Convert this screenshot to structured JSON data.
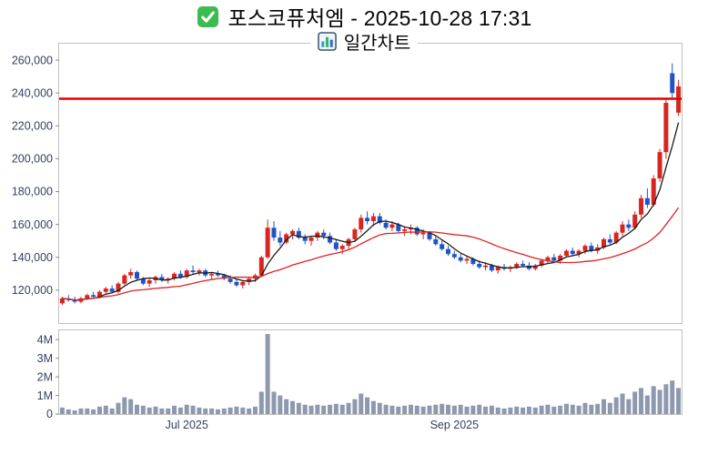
{
  "header": {
    "title": "포스코퓨처엠 - 2025-10-28 17:31",
    "subtitle": "일간차트",
    "check_icon": "green-checkbox-icon",
    "chart_icon": "bar-chart-icon"
  },
  "chart_data": {
    "type": "candlestick+volume",
    "title": "포스코퓨처엠 - 2025-10-28 17:31",
    "subtitle": "일간차트",
    "grid": false,
    "legend": "none",
    "price_axis": {
      "min": 100000,
      "max": 270000,
      "ticks": [
        120000,
        140000,
        160000,
        180000,
        200000,
        220000,
        240000,
        260000
      ]
    },
    "volume_axis": {
      "max": 4500000,
      "ticks": [
        0,
        1000000,
        2000000,
        3000000,
        4000000
      ],
      "tick_labels": [
        "0",
        "1M",
        "2M",
        "3M",
        "4M"
      ]
    },
    "x_labels": [
      {
        "label": "Jul 2025",
        "index": 20
      },
      {
        "label": "Sep 2025",
        "index": 63
      }
    ],
    "reference_line": {
      "value": 236500,
      "color": "#e60000"
    },
    "moving_averages": [
      {
        "name": "MA5",
        "window": 5,
        "color": "#1a1a1a"
      },
      {
        "name": "MA20",
        "window": 20,
        "color": "#dd2222"
      }
    ],
    "colors": {
      "up": "#d7261f",
      "down": "#2053c6",
      "volume": "#8e99ae",
      "border": "#c0c0c0"
    },
    "columns": [
      "date",
      "open",
      "high",
      "low",
      "close",
      "volume"
    ],
    "candles": [
      [
        "2025-06-02",
        112000,
        116000,
        111000,
        115000,
        350000
      ],
      [
        "2025-06-03",
        115000,
        117000,
        113000,
        114000,
        250000
      ],
      [
        "2025-06-04",
        114000,
        116000,
        112000,
        113000,
        200000
      ],
      [
        "2025-06-05",
        113000,
        116000,
        112000,
        115000,
        300000
      ],
      [
        "2025-06-09",
        115000,
        118000,
        114000,
        117000,
        300000
      ],
      [
        "2025-06-10",
        117000,
        119000,
        115000,
        116000,
        250000
      ],
      [
        "2025-06-11",
        116000,
        120000,
        115000,
        119000,
        400000
      ],
      [
        "2025-06-12",
        119000,
        122000,
        118000,
        121000,
        450000
      ],
      [
        "2025-06-13",
        121000,
        123000,
        118000,
        119000,
        300000
      ],
      [
        "2025-06-16",
        119000,
        125000,
        118000,
        124000,
        600000
      ],
      [
        "2025-06-17",
        124000,
        130000,
        123000,
        129000,
        900000
      ],
      [
        "2025-06-18",
        129000,
        133000,
        127000,
        131000,
        800000
      ],
      [
        "2025-06-19",
        131000,
        132000,
        126000,
        127000,
        500000
      ],
      [
        "2025-06-20",
        127000,
        128000,
        123000,
        124000,
        450000
      ],
      [
        "2025-06-23",
        124000,
        127000,
        122000,
        126000,
        350000
      ],
      [
        "2025-06-24",
        126000,
        129000,
        124000,
        128000,
        400000
      ],
      [
        "2025-06-25",
        128000,
        130000,
        125000,
        126000,
        300000
      ],
      [
        "2025-06-26",
        126000,
        128000,
        124000,
        127000,
        300000
      ],
      [
        "2025-06-27",
        127000,
        131000,
        126000,
        130000,
        450000
      ],
      [
        "2025-06-30",
        130000,
        132000,
        127000,
        128000,
        350000
      ],
      [
        "2025-07-01",
        128000,
        133000,
        127000,
        132000,
        500000
      ],
      [
        "2025-07-02",
        132000,
        135000,
        130000,
        131000,
        450000
      ],
      [
        "2025-07-03",
        131000,
        133000,
        129000,
        132000,
        350000
      ],
      [
        "2025-07-04",
        132000,
        133000,
        128000,
        129000,
        300000
      ],
      [
        "2025-07-07",
        129000,
        131000,
        127000,
        130000,
        300000
      ],
      [
        "2025-07-08",
        130000,
        132000,
        128000,
        129000,
        250000
      ],
      [
        "2025-07-09",
        129000,
        130000,
        126000,
        127000,
        300000
      ],
      [
        "2025-07-10",
        127000,
        129000,
        124000,
        125000,
        350000
      ],
      [
        "2025-07-11",
        125000,
        127000,
        122000,
        123000,
        400000
      ],
      [
        "2025-07-14",
        123000,
        126000,
        121000,
        125000,
        350000
      ],
      [
        "2025-07-15",
        125000,
        128000,
        123000,
        127000,
        300000
      ],
      [
        "2025-07-16",
        127000,
        130000,
        125000,
        129000,
        400000
      ],
      [
        "2025-07-17",
        129000,
        141000,
        128000,
        140000,
        1200000
      ],
      [
        "2025-07-18",
        140000,
        163000,
        139000,
        158000,
        4300000
      ],
      [
        "2025-07-21",
        158000,
        162000,
        150000,
        152000,
        1200000
      ],
      [
        "2025-07-22",
        152000,
        156000,
        147000,
        149000,
        1000000
      ],
      [
        "2025-07-23",
        149000,
        155000,
        148000,
        154000,
        800000
      ],
      [
        "2025-07-24",
        154000,
        157000,
        151000,
        156000,
        700000
      ],
      [
        "2025-07-25",
        156000,
        158000,
        151000,
        152000,
        600000
      ],
      [
        "2025-07-28",
        152000,
        154000,
        148000,
        150000,
        500000
      ],
      [
        "2025-07-29",
        150000,
        153000,
        147000,
        152000,
        450000
      ],
      [
        "2025-07-30",
        152000,
        156000,
        150000,
        155000,
        500000
      ],
      [
        "2025-07-31",
        155000,
        157000,
        151000,
        153000,
        450000
      ],
      [
        "2025-08-01",
        153000,
        155000,
        148000,
        149000,
        500000
      ],
      [
        "2025-08-04",
        149000,
        151000,
        144000,
        145000,
        550000
      ],
      [
        "2025-08-05",
        145000,
        148000,
        142000,
        147000,
        500000
      ],
      [
        "2025-08-06",
        147000,
        152000,
        145000,
        151000,
        600000
      ],
      [
        "2025-08-07",
        151000,
        158000,
        150000,
        157000,
        800000
      ],
      [
        "2025-08-08",
        157000,
        166000,
        155000,
        164000,
        1100000
      ],
      [
        "2025-08-11",
        164000,
        168000,
        160000,
        162000,
        900000
      ],
      [
        "2025-08-12",
        162000,
        167000,
        159000,
        165000,
        700000
      ],
      [
        "2025-08-13",
        165000,
        167000,
        160000,
        161000,
        600000
      ],
      [
        "2025-08-14",
        161000,
        163000,
        157000,
        158000,
        500000
      ],
      [
        "2025-08-18",
        158000,
        162000,
        156000,
        160000,
        450000
      ],
      [
        "2025-08-19",
        160000,
        161000,
        155000,
        156000,
        400000
      ],
      [
        "2025-08-20",
        156000,
        159000,
        153000,
        157000,
        450000
      ],
      [
        "2025-08-21",
        157000,
        160000,
        154000,
        158000,
        500000
      ],
      [
        "2025-08-22",
        158000,
        159000,
        153000,
        154000,
        450000
      ],
      [
        "2025-08-25",
        154000,
        157000,
        151000,
        155000,
        400000
      ],
      [
        "2025-08-26",
        155000,
        156000,
        150000,
        151000,
        450000
      ],
      [
        "2025-08-27",
        151000,
        153000,
        147000,
        148000,
        500000
      ],
      [
        "2025-08-28",
        148000,
        150000,
        144000,
        145000,
        550000
      ],
      [
        "2025-08-29",
        145000,
        147000,
        141000,
        142000,
        500000
      ],
      [
        "2025-09-01",
        142000,
        144000,
        139000,
        140000,
        450000
      ],
      [
        "2025-09-02",
        140000,
        142000,
        137000,
        138000,
        500000
      ],
      [
        "2025-09-03",
        138000,
        141000,
        136000,
        139000,
        400000
      ],
      [
        "2025-09-04",
        139000,
        140000,
        135000,
        136000,
        450000
      ],
      [
        "2025-09-05",
        136000,
        138000,
        133000,
        134000,
        500000
      ],
      [
        "2025-09-08",
        134000,
        137000,
        132000,
        135000,
        400000
      ],
      [
        "2025-09-09",
        135000,
        136000,
        131000,
        132000,
        450000
      ],
      [
        "2025-09-10",
        132000,
        135000,
        130000,
        134000,
        350000
      ],
      [
        "2025-09-11",
        134000,
        136000,
        132000,
        133000,
        300000
      ],
      [
        "2025-09-12",
        133000,
        135000,
        131000,
        134000,
        350000
      ],
      [
        "2025-09-15",
        134000,
        137000,
        133000,
        136000,
        400000
      ],
      [
        "2025-09-16",
        136000,
        138000,
        134000,
        135000,
        350000
      ],
      [
        "2025-09-17",
        135000,
        137000,
        132000,
        133000,
        400000
      ],
      [
        "2025-09-18",
        133000,
        136000,
        132000,
        135000,
        350000
      ],
      [
        "2025-09-19",
        135000,
        139000,
        134000,
        138000,
        450000
      ],
      [
        "2025-09-22",
        138000,
        141000,
        136000,
        140000,
        500000
      ],
      [
        "2025-09-23",
        140000,
        142000,
        137000,
        138000,
        400000
      ],
      [
        "2025-09-24",
        138000,
        142000,
        136000,
        141000,
        450000
      ],
      [
        "2025-09-25",
        141000,
        145000,
        140000,
        144000,
        550000
      ],
      [
        "2025-09-26",
        144000,
        146000,
        141000,
        142000,
        500000
      ],
      [
        "2025-09-29",
        142000,
        145000,
        140000,
        144000,
        450000
      ],
      [
        "2025-09-30",
        144000,
        148000,
        142000,
        147000,
        600000
      ],
      [
        "2025-10-01",
        147000,
        149000,
        143000,
        144000,
        500000
      ],
      [
        "2025-10-02",
        144000,
        148000,
        142000,
        146000,
        550000
      ],
      [
        "2025-10-10",
        146000,
        152000,
        145000,
        151000,
        800000
      ],
      [
        "2025-10-13",
        151000,
        154000,
        148000,
        149000,
        600000
      ],
      [
        "2025-10-14",
        149000,
        156000,
        148000,
        155000,
        900000
      ],
      [
        "2025-10-15",
        155000,
        162000,
        153000,
        160000,
        1100000
      ],
      [
        "2025-10-16",
        160000,
        163000,
        156000,
        158000,
        800000
      ],
      [
        "2025-10-17",
        158000,
        168000,
        157000,
        166000,
        1200000
      ],
      [
        "2025-10-20",
        166000,
        178000,
        164000,
        176000,
        1400000
      ],
      [
        "2025-10-21",
        176000,
        182000,
        170000,
        172000,
        1000000
      ],
      [
        "2025-10-22",
        172000,
        190000,
        171000,
        188000,
        1500000
      ],
      [
        "2025-10-23",
        188000,
        206000,
        186000,
        204000,
        1300000
      ],
      [
        "2025-10-24",
        204000,
        236000,
        200000,
        234000,
        1600000
      ],
      [
        "2025-10-27",
        252000,
        258000,
        236000,
        240000,
        1800000
      ],
      [
        "2025-10-28",
        228000,
        248000,
        226000,
        244000,
        1400000
      ]
    ]
  }
}
